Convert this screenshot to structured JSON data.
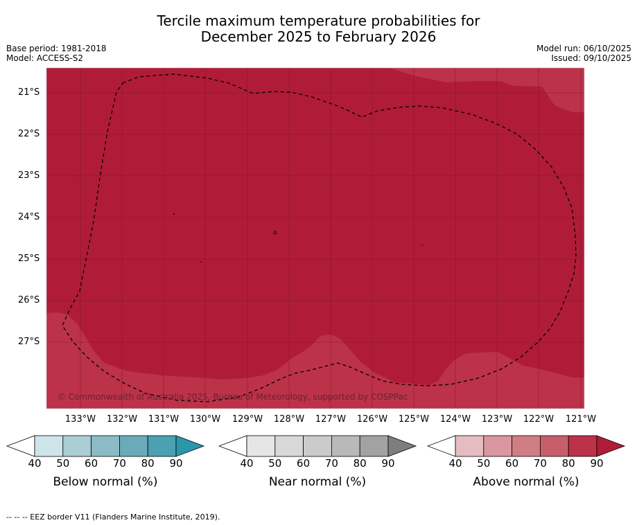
{
  "title": {
    "line1": "Tercile maximum temperature probabilities for",
    "line2": "December 2025 to February 2026"
  },
  "meta": {
    "base_period": "Base period: 1981-2018",
    "model": "Model: ACCESS-S2",
    "model_run": "Model run: 06/10/2025",
    "issued": "Issued: 09/10/2025"
  },
  "map": {
    "lat_labels": [
      "21°S",
      "22°S",
      "23°S",
      "24°S",
      "25°S",
      "26°S",
      "27°S"
    ],
    "lon_labels": [
      "133°W",
      "132°W",
      "131°W",
      "130°W",
      "129°W",
      "128°W",
      "127°W",
      "126°W",
      "125°W",
      "124°W",
      "123°W",
      "122°W",
      "121°W"
    ],
    "copyright": "© Commonwealth of Australia 2025, Bureau of Meteorology, supported by COSPPac",
    "colors": {
      "above_90": "#b01c38",
      "above_80": "#bc3248",
      "grid": "#5a1020"
    }
  },
  "colorbars": [
    {
      "label": "Below normal (%)",
      "ticks": [
        "40",
        "50",
        "60",
        "70",
        "80",
        "90"
      ],
      "colors": [
        "#ffffff",
        "#cde5ea",
        "#abcdd4",
        "#8cbbc6",
        "#6aabb9",
        "#4aa1b2",
        "#2b97ad"
      ]
    },
    {
      "label": "Near normal (%)",
      "ticks": [
        "40",
        "50",
        "60",
        "70",
        "80",
        "90"
      ],
      "colors": [
        "#ffffff",
        "#e6e6e6",
        "#d8d8d8",
        "#cbcbcb",
        "#b9b9b9",
        "#a2a2a2",
        "#7e7e7e"
      ]
    },
    {
      "label": "Above normal (%)",
      "ticks": [
        "40",
        "50",
        "60",
        "70",
        "80",
        "90"
      ],
      "colors": [
        "#ffffff",
        "#e6bcc3",
        "#d9979f",
        "#d17d84",
        "#c75f6b",
        "#bc3248",
        "#b01c38"
      ]
    }
  ],
  "footnote": "--  --  -- EEZ border V11 (Flanders Marine Institute, 2019)."
}
